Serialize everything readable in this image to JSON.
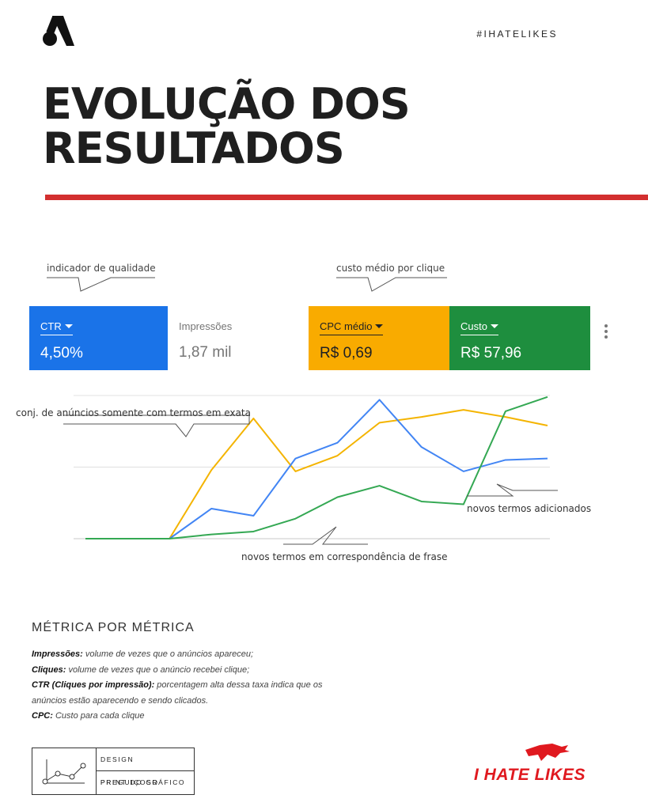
{
  "header": {
    "hashtag": "#IHATELIKES",
    "title_line1": "EVOLUÇÃO DOS",
    "title_line2": "RESULTADOS"
  },
  "annotations": {
    "quality": "indicador de qualidade",
    "cpc": "custo médio por clique",
    "exact": "conj. de anúncios somente com termos em exata",
    "new_terms": "novos termos adicionados",
    "phrase": "novos termos em correspondência de frase"
  },
  "metrics": [
    {
      "label": "CTR",
      "value": "4,50%",
      "dropdown": true
    },
    {
      "label": "Impressões",
      "value": "1,87 mil",
      "dropdown": false
    },
    {
      "label": "CPC médio",
      "value": "R$ 0,69",
      "dropdown": true
    },
    {
      "label": "Custo",
      "value": "R$ 57,96",
      "dropdown": true
    }
  ],
  "chart_data": {
    "type": "line",
    "x": [
      1,
      2,
      3,
      4,
      5,
      6,
      7,
      8,
      9,
      10,
      11,
      12
    ],
    "ylim": [
      0,
      100
    ],
    "grid": true,
    "series": [
      {
        "color": "#f4b400",
        "values": [
          0,
          0,
          0,
          48,
          84,
          47,
          58,
          81,
          85,
          90,
          85,
          79
        ]
      },
      {
        "color": "#4285f4",
        "values": [
          0,
          0,
          0,
          21,
          16,
          56,
          67,
          97,
          64,
          47,
          55,
          56
        ]
      },
      {
        "color": "#34a853",
        "values": [
          0,
          0,
          0,
          3,
          5,
          14,
          29,
          37,
          26,
          24,
          89,
          99
        ]
      }
    ]
  },
  "definitions": {
    "title": "MÉTRICA POR MÉTRICA",
    "items": [
      {
        "term": "Impressões:",
        "text": " volume de vezes que o anúncios apareceu;"
      },
      {
        "term": "Cliques:",
        "text": " volume de vezes que o anúncio recebei clique;"
      },
      {
        "term": "CTR (Cliques por impressão):",
        "text": " porcentagem alta dessa taxa indica que os"
      },
      {
        "term": "",
        "text": "anúncios estão aparecendo e sendo clicados."
      },
      {
        "term": "CPC:",
        "text": " Custo para cada clique"
      }
    ]
  },
  "footer": {
    "credit_1": "DESIGN PREGUIÇOSO",
    "credit_2": "PRINT DO GRÁFICO",
    "brand": "I HATE LIKES"
  },
  "colors": {
    "accent_red": "#d32f2f",
    "ctr": "#1a73e8",
    "cpc": "#f9ab00",
    "cost": "#1e8e3e",
    "brand_red": "#e0191f"
  }
}
